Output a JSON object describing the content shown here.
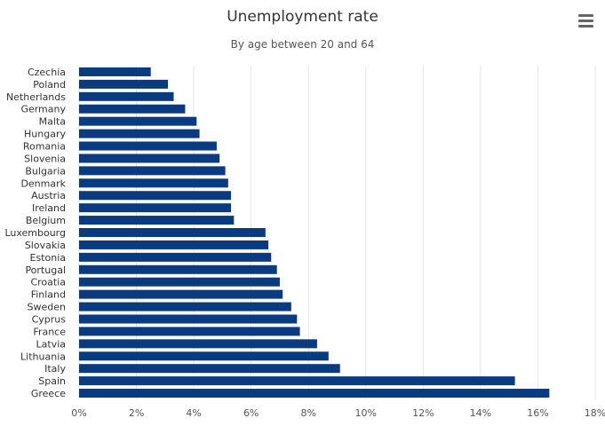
{
  "chart_data": {
    "type": "bar",
    "orientation": "horizontal",
    "title": "Unemployment rate",
    "subtitle": "By age between 20 and 64",
    "categories": [
      "Czechia",
      "Poland",
      "Netherlands",
      "Germany",
      "Malta",
      "Hungary",
      "Romania",
      "Slovenia",
      "Bulgaria",
      "Denmark",
      "Austria",
      "Ireland",
      "Belgium",
      "Luxembourg",
      "Slovakia",
      "Estonia",
      "Portugal",
      "Croatia",
      "Finland",
      "Sweden",
      "Cyprus",
      "France",
      "Latvia",
      "Lithuania",
      "Italy",
      "Spain",
      "Greece"
    ],
    "values": [
      2.5,
      3.1,
      3.3,
      3.7,
      4.1,
      4.2,
      4.8,
      4.9,
      5.1,
      5.2,
      5.3,
      5.3,
      5.4,
      6.5,
      6.6,
      6.7,
      6.9,
      7.0,
      7.1,
      7.4,
      7.6,
      7.7,
      8.3,
      8.7,
      9.1,
      15.2,
      16.4
    ],
    "xlim": [
      0,
      18
    ],
    "xticks": [
      0,
      2,
      4,
      6,
      8,
      10,
      12,
      14,
      16,
      18
    ],
    "xtick_labels": [
      "0%",
      "2%",
      "4%",
      "6%",
      "8%",
      "10%",
      "12%",
      "14%",
      "16%",
      "18%"
    ],
    "xlabel": "",
    "ylabel": "",
    "grid": true,
    "legend": false,
    "bar_color": "#0a3a80"
  },
  "menu": {
    "icon": "hamburger-menu-icon"
  }
}
